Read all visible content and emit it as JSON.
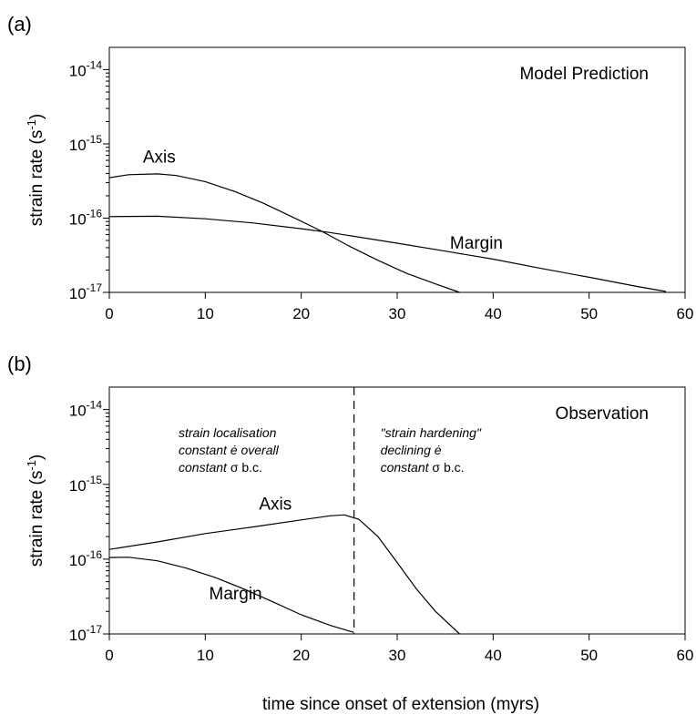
{
  "xlabel": "time since onset of extension (myrs)",
  "chart_data": [
    {
      "type": "line",
      "panel_label": "(a)",
      "title": "Model Prediction",
      "xlabel": "",
      "ylabel": "strain rate (s",
      "ylabel_sup": "-1",
      "ylabel_close": ")",
      "xlim": [
        0,
        60
      ],
      "ylim_exp": [
        -17,
        -13.7
      ],
      "yscale": "log",
      "x_ticks": [
        "0",
        "10",
        "20",
        "30",
        "40",
        "50",
        "60"
      ],
      "y_ticks": [
        {
          "base": "10",
          "exp": "-17"
        },
        {
          "base": "10",
          "exp": "-16"
        },
        {
          "base": "10",
          "exp": "-15"
        },
        {
          "base": "10",
          "exp": "-14"
        }
      ],
      "series": [
        {
          "name": "Axis",
          "x": [
            0,
            2,
            5,
            7,
            10,
            13,
            16,
            19,
            22,
            25,
            28,
            31,
            34,
            36.5
          ],
          "y": [
            3.5e-16,
            3.85e-16,
            3.95e-16,
            3.75e-16,
            3.1e-16,
            2.3e-16,
            1.6e-16,
            1.05e-16,
            6.8e-17,
            4.2e-17,
            2.7e-17,
            1.8e-17,
            1.3e-17,
            1e-17
          ]
        },
        {
          "name": "Margin",
          "x": [
            0,
            5,
            10,
            15,
            20,
            23,
            30,
            35,
            40,
            45,
            50,
            55,
            58
          ],
          "y": [
            1.05e-16,
            1.06e-16,
            9.8e-17,
            8.6e-17,
            7.2e-17,
            6.4e-17,
            4.6e-17,
            3.6e-17,
            2.8e-17,
            2.1e-17,
            1.6e-17,
            1.2e-17,
            1.03e-17
          ]
        }
      ],
      "series_label_positions_data": [
        {
          "name": "Axis",
          "x": 3.5,
          "y": 5.6e-16
        },
        {
          "name": "Margin",
          "x": 35.5,
          "y": 3.9e-17
        }
      ]
    },
    {
      "type": "line",
      "panel_label": "(b)",
      "title": "Observation",
      "xlabel": "",
      "ylabel": "strain rate (s",
      "ylabel_sup": "-1",
      "ylabel_close": ")",
      "xlim": [
        0,
        60
      ],
      "ylim_exp": [
        -17,
        -13.7
      ],
      "yscale": "log",
      "x_ticks": [
        "0",
        "10",
        "20",
        "30",
        "40",
        "50",
        "60"
      ],
      "y_ticks": [
        {
          "base": "10",
          "exp": "-17"
        },
        {
          "base": "10",
          "exp": "-16"
        },
        {
          "base": "10",
          "exp": "-15"
        },
        {
          "base": "10",
          "exp": "-14"
        }
      ],
      "series": [
        {
          "name": "Axis",
          "x": [
            0,
            5,
            10,
            15,
            20,
            23,
            24.5,
            26,
            28,
            30,
            32,
            34,
            36.5
          ],
          "y": [
            1.35e-16,
            1.7e-16,
            2.2e-16,
            2.7e-16,
            3.35e-16,
            3.8e-16,
            3.9e-16,
            3.4e-16,
            2e-16,
            9e-17,
            4e-17,
            2e-17,
            1e-17
          ]
        },
        {
          "name": "Margin",
          "x": [
            0,
            2,
            5,
            8,
            11,
            14,
            17,
            20,
            23,
            25.5
          ],
          "y": [
            1.05e-16,
            1.06e-16,
            9.5e-17,
            7.6e-17,
            5.7e-17,
            4e-17,
            2.7e-17,
            1.8e-17,
            1.3e-17,
            1.05e-17
          ]
        }
      ],
      "series_label_positions_data": [
        {
          "name": "Axis",
          "x": 15.6,
          "y": 4.6e-16
        },
        {
          "name": "Margin",
          "x": 10.4,
          "y": 2.9e-17
        }
      ],
      "vline_x": 25.5,
      "notes_left": [
        {
          "text": "strain localisation"
        },
        {
          "text": "constant ė overall"
        },
        {
          "text": "constant ",
          "symbol": "σ",
          "suffix": " b.c."
        }
      ],
      "notes_right": [
        {
          "text": "\"strain hardening\""
        },
        {
          "text": "declining ė"
        },
        {
          "text": "constant ",
          "symbol": "σ",
          "suffix": " b.c."
        }
      ]
    }
  ]
}
